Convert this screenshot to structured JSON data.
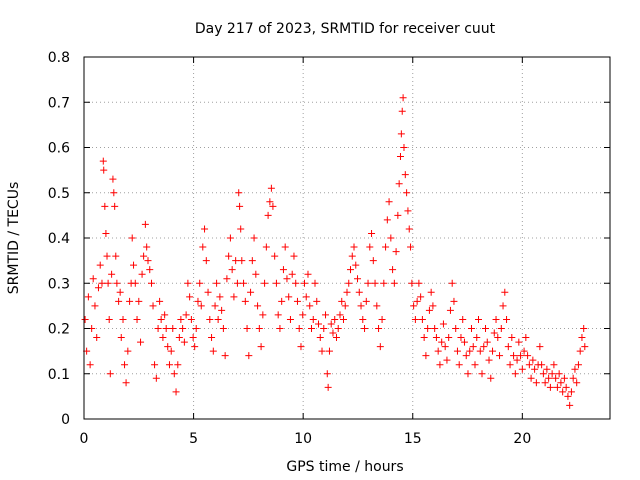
{
  "chart_data": {
    "type": "scatter",
    "title": "Day 217 of 2023, SRMTID for receiver cuut",
    "xlabel": "GPS time / hours",
    "ylabel": "SRMTID / TECUs",
    "xlim": [
      0,
      24
    ],
    "ylim": [
      0,
      0.8
    ],
    "grid": true,
    "marker": "+",
    "x_ticks": [
      0,
      5,
      10,
      15,
      20
    ],
    "x_tick_labels": [
      "0",
      "5",
      "10",
      "15",
      "20"
    ],
    "y_ticks": [
      0,
      0.1,
      0.2,
      0.3,
      0.4,
      0.5,
      0.6,
      0.7,
      0.8
    ],
    "y_tick_labels": [
      "0",
      "0.1",
      "0.2",
      "0.3",
      "0.4",
      "0.5",
      "0.6",
      "0.7",
      "0.8"
    ],
    "series": [
      {
        "name": "SRMTID",
        "color": "#ff0000",
        "points": [
          [
            0.05,
            0.22
          ],
          [
            0.12,
            0.15
          ],
          [
            0.2,
            0.27
          ],
          [
            0.28,
            0.12
          ],
          [
            0.35,
            0.2
          ],
          [
            0.42,
            0.31
          ],
          [
            0.5,
            0.25
          ],
          [
            0.58,
            0.18
          ],
          [
            0.66,
            0.29
          ],
          [
            0.74,
            0.34
          ],
          [
            0.82,
            0.3
          ],
          [
            0.88,
            0.57
          ],
          [
            0.9,
            0.55
          ],
          [
            0.95,
            0.47
          ],
          [
            1.0,
            0.41
          ],
          [
            1.05,
            0.36
          ],
          [
            1.1,
            0.3
          ],
          [
            1.15,
            0.22
          ],
          [
            1.2,
            0.1
          ],
          [
            1.26,
            0.32
          ],
          [
            1.32,
            0.53
          ],
          [
            1.36,
            0.5
          ],
          [
            1.4,
            0.47
          ],
          [
            1.45,
            0.36
          ],
          [
            1.5,
            0.3
          ],
          [
            1.58,
            0.26
          ],
          [
            1.65,
            0.28
          ],
          [
            1.7,
            0.18
          ],
          [
            1.78,
            0.22
          ],
          [
            1.85,
            0.12
          ],
          [
            1.92,
            0.08
          ],
          [
            2.0,
            0.15
          ],
          [
            2.08,
            0.26
          ],
          [
            2.15,
            0.3
          ],
          [
            2.2,
            0.4
          ],
          [
            2.26,
            0.34
          ],
          [
            2.34,
            0.3
          ],
          [
            2.42,
            0.22
          ],
          [
            2.5,
            0.26
          ],
          [
            2.58,
            0.17
          ],
          [
            2.65,
            0.32
          ],
          [
            2.72,
            0.36
          ],
          [
            2.8,
            0.43
          ],
          [
            2.86,
            0.38
          ],
          [
            2.92,
            0.35
          ],
          [
            3.0,
            0.33
          ],
          [
            3.08,
            0.3
          ],
          [
            3.15,
            0.25
          ],
          [
            3.22,
            0.12
          ],
          [
            3.3,
            0.09
          ],
          [
            3.38,
            0.2
          ],
          [
            3.45,
            0.26
          ],
          [
            3.52,
            0.22
          ],
          [
            3.6,
            0.18
          ],
          [
            3.68,
            0.23
          ],
          [
            3.75,
            0.2
          ],
          [
            3.82,
            0.16
          ],
          [
            3.9,
            0.12
          ],
          [
            3.98,
            0.15
          ],
          [
            4.05,
            0.2
          ],
          [
            4.12,
            0.1
          ],
          [
            4.2,
            0.06
          ],
          [
            4.28,
            0.12
          ],
          [
            4.35,
            0.18
          ],
          [
            4.42,
            0.22
          ],
          [
            4.5,
            0.2
          ],
          [
            4.58,
            0.17
          ],
          [
            4.66,
            0.23
          ],
          [
            4.74,
            0.3
          ],
          [
            4.82,
            0.27
          ],
          [
            4.9,
            0.22
          ],
          [
            4.98,
            0.18
          ],
          [
            5.05,
            0.16
          ],
          [
            5.12,
            0.2
          ],
          [
            5.2,
            0.26
          ],
          [
            5.28,
            0.3
          ],
          [
            5.35,
            0.25
          ],
          [
            5.42,
            0.38
          ],
          [
            5.5,
            0.42
          ],
          [
            5.58,
            0.35
          ],
          [
            5.66,
            0.28
          ],
          [
            5.74,
            0.22
          ],
          [
            5.82,
            0.18
          ],
          [
            5.9,
            0.15
          ],
          [
            5.98,
            0.25
          ],
          [
            6.05,
            0.3
          ],
          [
            6.12,
            0.22
          ],
          [
            6.2,
            0.27
          ],
          [
            6.28,
            0.24
          ],
          [
            6.36,
            0.2
          ],
          [
            6.44,
            0.14
          ],
          [
            6.52,
            0.31
          ],
          [
            6.6,
            0.36
          ],
          [
            6.68,
            0.4
          ],
          [
            6.76,
            0.33
          ],
          [
            6.84,
            0.27
          ],
          [
            6.92,
            0.35
          ],
          [
            7.0,
            0.3
          ],
          [
            7.06,
            0.5
          ],
          [
            7.1,
            0.47
          ],
          [
            7.15,
            0.42
          ],
          [
            7.2,
            0.35
          ],
          [
            7.28,
            0.3
          ],
          [
            7.36,
            0.26
          ],
          [
            7.44,
            0.2
          ],
          [
            7.52,
            0.14
          ],
          [
            7.6,
            0.28
          ],
          [
            7.68,
            0.35
          ],
          [
            7.76,
            0.4
          ],
          [
            7.84,
            0.32
          ],
          [
            7.92,
            0.25
          ],
          [
            8.0,
            0.2
          ],
          [
            8.08,
            0.16
          ],
          [
            8.16,
            0.23
          ],
          [
            8.24,
            0.3
          ],
          [
            8.32,
            0.38
          ],
          [
            8.4,
            0.45
          ],
          [
            8.48,
            0.48
          ],
          [
            8.55,
            0.51
          ],
          [
            8.62,
            0.47
          ],
          [
            8.7,
            0.36
          ],
          [
            8.78,
            0.3
          ],
          [
            8.86,
            0.23
          ],
          [
            8.94,
            0.2
          ],
          [
            9.02,
            0.26
          ],
          [
            9.1,
            0.33
          ],
          [
            9.18,
            0.38
          ],
          [
            9.26,
            0.31
          ],
          [
            9.34,
            0.27
          ],
          [
            9.42,
            0.22
          ],
          [
            9.5,
            0.32
          ],
          [
            9.58,
            0.36
          ],
          [
            9.66,
            0.3
          ],
          [
            9.74,
            0.26
          ],
          [
            9.82,
            0.2
          ],
          [
            9.9,
            0.16
          ],
          [
            9.98,
            0.23
          ],
          [
            10.06,
            0.3
          ],
          [
            10.14,
            0.27
          ],
          [
            10.22,
            0.32
          ],
          [
            10.3,
            0.25
          ],
          [
            10.38,
            0.2
          ],
          [
            10.46,
            0.22
          ],
          [
            10.54,
            0.3
          ],
          [
            10.62,
            0.26
          ],
          [
            10.7,
            0.21
          ],
          [
            10.78,
            0.18
          ],
          [
            10.86,
            0.15
          ],
          [
            10.94,
            0.2
          ],
          [
            11.02,
            0.23
          ],
          [
            11.1,
            0.1
          ],
          [
            11.14,
            0.07
          ],
          [
            11.2,
            0.15
          ],
          [
            11.28,
            0.21
          ],
          [
            11.36,
            0.19
          ],
          [
            11.44,
            0.22
          ],
          [
            11.52,
            0.18
          ],
          [
            11.6,
            0.2
          ],
          [
            11.68,
            0.23
          ],
          [
            11.76,
            0.26
          ],
          [
            11.84,
            0.22
          ],
          [
            11.92,
            0.25
          ],
          [
            12.0,
            0.28
          ],
          [
            12.08,
            0.3
          ],
          [
            12.16,
            0.33
          ],
          [
            12.24,
            0.36
          ],
          [
            12.32,
            0.38
          ],
          [
            12.4,
            0.34
          ],
          [
            12.48,
            0.31
          ],
          [
            12.56,
            0.28
          ],
          [
            12.64,
            0.25
          ],
          [
            12.72,
            0.22
          ],
          [
            12.8,
            0.2
          ],
          [
            12.88,
            0.26
          ],
          [
            12.96,
            0.3
          ],
          [
            13.04,
            0.38
          ],
          [
            13.12,
            0.41
          ],
          [
            13.2,
            0.35
          ],
          [
            13.28,
            0.3
          ],
          [
            13.36,
            0.25
          ],
          [
            13.44,
            0.2
          ],
          [
            13.52,
            0.16
          ],
          [
            13.6,
            0.22
          ],
          [
            13.68,
            0.3
          ],
          [
            13.76,
            0.38
          ],
          [
            13.84,
            0.44
          ],
          [
            13.92,
            0.48
          ],
          [
            14.0,
            0.4
          ],
          [
            14.08,
            0.33
          ],
          [
            14.16,
            0.3
          ],
          [
            14.24,
            0.37
          ],
          [
            14.32,
            0.45
          ],
          [
            14.38,
            0.52
          ],
          [
            14.44,
            0.58
          ],
          [
            14.48,
            0.63
          ],
          [
            14.52,
            0.68
          ],
          [
            14.56,
            0.71
          ],
          [
            14.6,
            0.6
          ],
          [
            14.66,
            0.54
          ],
          [
            14.72,
            0.5
          ],
          [
            14.78,
            0.46
          ],
          [
            14.84,
            0.42
          ],
          [
            14.9,
            0.38
          ],
          [
            14.96,
            0.3
          ],
          [
            15.04,
            0.25
          ],
          [
            15.12,
            0.22
          ],
          [
            15.2,
            0.26
          ],
          [
            15.28,
            0.3
          ],
          [
            15.36,
            0.27
          ],
          [
            15.44,
            0.22
          ],
          [
            15.52,
            0.18
          ],
          [
            15.6,
            0.14
          ],
          [
            15.68,
            0.2
          ],
          [
            15.76,
            0.24
          ],
          [
            15.84,
            0.28
          ],
          [
            15.92,
            0.25
          ],
          [
            16.0,
            0.2
          ],
          [
            16.08,
            0.18
          ],
          [
            16.16,
            0.15
          ],
          [
            16.24,
            0.12
          ],
          [
            16.32,
            0.17
          ],
          [
            16.4,
            0.21
          ],
          [
            16.48,
            0.16
          ],
          [
            16.56,
            0.13
          ],
          [
            16.64,
            0.18
          ],
          [
            16.72,
            0.24
          ],
          [
            16.8,
            0.3
          ],
          [
            16.88,
            0.26
          ],
          [
            16.96,
            0.2
          ],
          [
            17.04,
            0.15
          ],
          [
            17.12,
            0.12
          ],
          [
            17.2,
            0.18
          ],
          [
            17.28,
            0.22
          ],
          [
            17.36,
            0.17
          ],
          [
            17.44,
            0.14
          ],
          [
            17.52,
            0.1
          ],
          [
            17.6,
            0.15
          ],
          [
            17.68,
            0.2
          ],
          [
            17.76,
            0.16
          ],
          [
            17.84,
            0.12
          ],
          [
            17.92,
            0.18
          ],
          [
            18.0,
            0.22
          ],
          [
            18.08,
            0.15
          ],
          [
            18.16,
            0.1
          ],
          [
            18.24,
            0.16
          ],
          [
            18.32,
            0.2
          ],
          [
            18.4,
            0.17
          ],
          [
            18.48,
            0.13
          ],
          [
            18.56,
            0.09
          ],
          [
            18.64,
            0.15
          ],
          [
            18.72,
            0.19
          ],
          [
            18.8,
            0.22
          ],
          [
            18.88,
            0.18
          ],
          [
            18.96,
            0.14
          ],
          [
            19.04,
            0.2
          ],
          [
            19.12,
            0.25
          ],
          [
            19.2,
            0.28
          ],
          [
            19.28,
            0.22
          ],
          [
            19.36,
            0.16
          ],
          [
            19.44,
            0.12
          ],
          [
            19.52,
            0.18
          ],
          [
            19.6,
            0.14
          ],
          [
            19.68,
            0.1
          ],
          [
            19.76,
            0.13
          ],
          [
            19.84,
            0.17
          ],
          [
            19.92,
            0.14
          ],
          [
            20.0,
            0.11
          ],
          [
            20.08,
            0.15
          ],
          [
            20.16,
            0.18
          ],
          [
            20.24,
            0.14
          ],
          [
            20.32,
            0.12
          ],
          [
            20.4,
            0.09
          ],
          [
            20.48,
            0.13
          ],
          [
            20.56,
            0.11
          ],
          [
            20.64,
            0.08
          ],
          [
            20.72,
            0.12
          ],
          [
            20.8,
            0.16
          ],
          [
            20.88,
            0.12
          ],
          [
            20.96,
            0.1
          ],
          [
            21.04,
            0.08
          ],
          [
            21.12,
            0.11
          ],
          [
            21.2,
            0.09
          ],
          [
            21.28,
            0.07
          ],
          [
            21.36,
            0.1
          ],
          [
            21.44,
            0.12
          ],
          [
            21.52,
            0.09
          ],
          [
            21.6,
            0.07
          ],
          [
            21.68,
            0.1
          ],
          [
            21.76,
            0.08
          ],
          [
            21.84,
            0.06
          ],
          [
            21.92,
            0.09
          ],
          [
            22.0,
            0.07
          ],
          [
            22.08,
            0.05
          ],
          [
            22.16,
            0.03
          ],
          [
            22.24,
            0.06
          ],
          [
            22.32,
            0.09
          ],
          [
            22.4,
            0.11
          ],
          [
            22.48,
            0.08
          ],
          [
            22.56,
            0.12
          ],
          [
            22.64,
            0.15
          ],
          [
            22.72,
            0.18
          ],
          [
            22.8,
            0.2
          ],
          [
            22.85,
            0.16
          ]
        ]
      }
    ]
  }
}
